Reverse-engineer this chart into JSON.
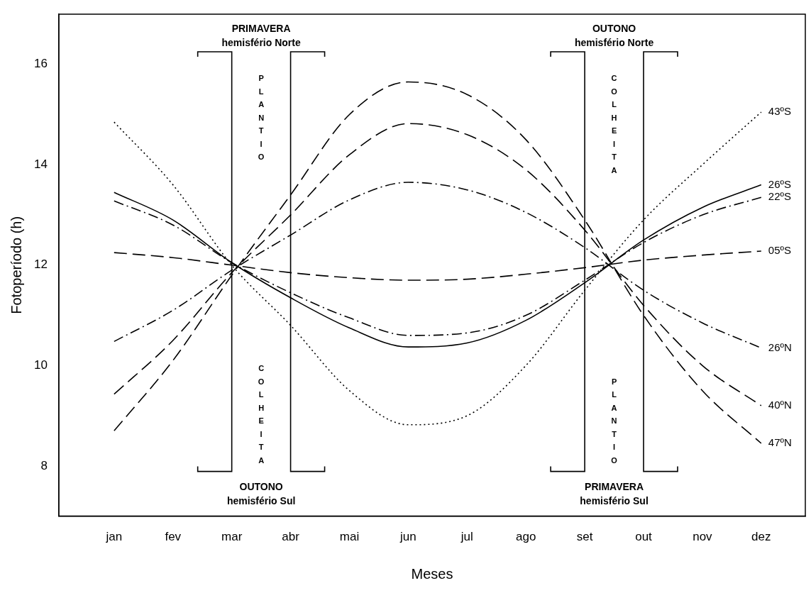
{
  "chart_data": {
    "type": "line",
    "xlabel": "Meses",
    "ylabel": "Fotoperíodo (h)",
    "categories": [
      "jan",
      "fev",
      "mar",
      "abr",
      "mai",
      "jun",
      "jul",
      "ago",
      "set",
      "out",
      "nov",
      "dez"
    ],
    "ylim": [
      7,
      17
    ],
    "yticks": [
      8,
      10,
      12,
      14,
      16
    ],
    "grid": false,
    "legend": false,
    "marker": "none",
    "series": [
      {
        "name": "43ºS",
        "color": "#000000",
        "line_style": "dotted",
        "values": [
          14.85,
          13.6,
          12.0,
          10.8,
          9.5,
          8.82,
          9.0,
          10.0,
          11.5,
          12.9,
          14.0,
          15.05
        ]
      },
      {
        "name": "26ºS",
        "color": "#000000",
        "line_style": "solid",
        "values": [
          13.45,
          12.9,
          12.05,
          11.35,
          10.75,
          10.37,
          10.45,
          10.9,
          11.65,
          12.5,
          13.15,
          13.6
        ]
      },
      {
        "name": "22ºS",
        "color": "#000000",
        "line_style": "dashdot",
        "values": [
          13.28,
          12.8,
          12.05,
          11.45,
          10.95,
          10.6,
          10.65,
          11.0,
          11.7,
          12.45,
          13.0,
          13.35
        ]
      },
      {
        "name": "05ºS",
        "color": "#000000",
        "line_style": "dashed",
        "values": [
          12.25,
          12.15,
          12.0,
          11.85,
          11.75,
          11.7,
          11.72,
          11.82,
          11.95,
          12.1,
          12.2,
          12.28
        ]
      },
      {
        "name": "26ºN",
        "color": "#000000",
        "line_style": "dashdot",
        "values": [
          10.48,
          11.1,
          11.9,
          12.6,
          13.3,
          13.65,
          13.5,
          13.05,
          12.35,
          11.5,
          10.85,
          10.35
        ]
      },
      {
        "name": "40ºN",
        "color": "#000000",
        "line_style": "dashed",
        "values": [
          9.43,
          10.5,
          11.85,
          13.0,
          14.2,
          14.82,
          14.6,
          13.9,
          12.7,
          11.2,
          10.0,
          9.2
        ]
      },
      {
        "name": "47ºN",
        "color": "#000000",
        "line_style": "dashed",
        "values": [
          8.7,
          10.1,
          11.8,
          13.4,
          15.0,
          15.65,
          15.4,
          14.5,
          12.9,
          11.0,
          9.5,
          8.45
        ]
      }
    ],
    "ref_lines": [
      {
        "axis": "x",
        "value": "mar",
        "color": "#000000"
      },
      {
        "axis": "x",
        "value": "abr",
        "color": "#000000"
      },
      {
        "axis": "x",
        "value": "set",
        "color": "#000000"
      },
      {
        "axis": "x",
        "value": "out",
        "color": "#000000"
      }
    ],
    "annotations": [
      "PRIMAVERA\nhemisfério Norte",
      "PLANTIO",
      "COLHEITA",
      "OUTONO\nhemisfério Sul",
      "OUTONO\nhemisfério Norte",
      "COLHEITA",
      "PLANTIO",
      "PRIMAVERA\nhemisfério Sul"
    ]
  }
}
